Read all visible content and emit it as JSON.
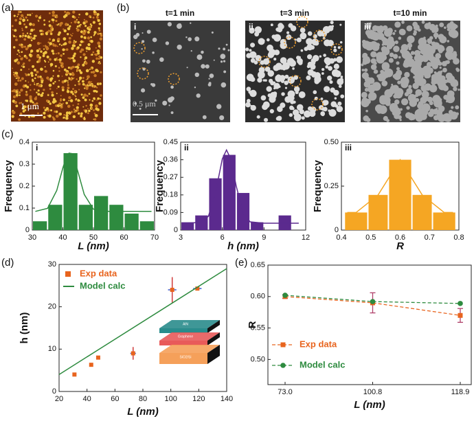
{
  "panels": {
    "a": {
      "label": "(a)",
      "scale_bar": "1 μm"
    },
    "b": {
      "label": "(b)",
      "images": [
        {
          "title": "t=1 min",
          "tag": "i",
          "scale_bar": "0.5 μm"
        },
        {
          "title": "t=3 min",
          "tag": "ii"
        },
        {
          "title": "t=10 min",
          "tag": "iii"
        }
      ]
    },
    "c": {
      "label": "(c)"
    },
    "d": {
      "label": "(d)"
    },
    "e": {
      "label": "(e)"
    }
  },
  "chart_data": [
    {
      "type": "histogram",
      "annotation": "i",
      "xlabel": "L (nm)",
      "ylabel": "Frequency",
      "color": "#2e8b3f",
      "bins": [
        30,
        35,
        40,
        45,
        50,
        55,
        60,
        65,
        70
      ],
      "values": [
        0.04,
        0.115,
        0.35,
        0.115,
        0.155,
        0.115,
        0.075,
        0.04
      ],
      "fit": {
        "x": [
          31,
          35,
          38,
          40,
          41,
          42,
          43,
          44,
          45,
          47,
          50,
          55,
          60,
          69
        ],
        "values": [
          0.085,
          0.099,
          0.18,
          0.283,
          0.326,
          0.35,
          0.348,
          0.31,
          0.262,
          0.162,
          0.095,
          0.085,
          0.085,
          0.085
        ]
      },
      "xlim": [
        30,
        70
      ],
      "ylim": [
        0,
        0.4
      ],
      "xticks": [
        30,
        40,
        50,
        60,
        70
      ],
      "yticks": [
        0,
        0.1,
        0.2,
        0.3,
        0.4
      ]
    },
    {
      "type": "histogram",
      "annotation": "ii",
      "xlabel": "h (nm)",
      "ylabel": "Frequency",
      "color": "#5b2a8e",
      "bins": [
        3,
        4,
        5,
        6,
        7,
        8,
        9,
        10,
        11
      ],
      "values": [
        0.04,
        0.075,
        0.265,
        0.385,
        0.19,
        0.04,
        0,
        0.075
      ],
      "fit": {
        "x": [
          3.2,
          4.5,
          5,
          5.5,
          6,
          6.3,
          6.6,
          7,
          7.5,
          8,
          9,
          11.5
        ],
        "values": [
          0.035,
          0.039,
          0.071,
          0.189,
          0.365,
          0.41,
          0.365,
          0.225,
          0.086,
          0.042,
          0.035,
          0.035
        ]
      },
      "xlim": [
        3,
        12
      ],
      "ylim": [
        0,
        0.45
      ],
      "xticks": [
        3,
        6,
        9,
        12
      ],
      "yticks": [
        0,
        0.09,
        0.18,
        0.27,
        0.36,
        0.45
      ]
    },
    {
      "type": "histogram",
      "annotation": "iii",
      "xlabel": "R",
      "ylabel": "Frequency",
      "color": "#f5a623",
      "bins": [
        0.41,
        0.49,
        0.56,
        0.64,
        0.71,
        0.79
      ],
      "values": [
        0.1,
        0.2,
        0.4,
        0.2,
        0.1
      ],
      "fit": {
        "x": [
          0.42,
          0.45,
          0.525,
          0.6,
          0.675,
          0.75,
          0.78
        ],
        "values": [
          0.1,
          0.1,
          0.2,
          0.4,
          0.2,
          0.1,
          0.1
        ]
      },
      "xlim": [
        0.4,
        0.8
      ],
      "ylim": [
        0,
        0.5
      ],
      "xticks": [
        0.4,
        0.5,
        0.6,
        0.7,
        0.8
      ],
      "yticks": [
        0,
        0.25,
        {
          "value": 0.5,
          "label": "0.50"
        }
      ]
    },
    {
      "type": "scatter",
      "xlabel": "L (nm)",
      "ylabel": "h (nm)",
      "legend": "upper left",
      "xlim": [
        20,
        140
      ],
      "ylim": [
        0,
        30
      ],
      "xticks": [
        20,
        40,
        60,
        80,
        100,
        120,
        140
      ],
      "yticks": [
        0,
        10,
        20,
        30
      ],
      "series": [
        {
          "name": "Exp data",
          "color": "#e8641e",
          "x": [
            31,
            43,
            48,
            73,
            101,
            119
          ],
          "values": [
            4,
            6.3,
            8,
            9,
            24,
            24.3
          ],
          "xerr": [
            0.5,
            1,
            0.5,
            2,
            3,
            3
          ],
          "yerr": [
            0.3,
            0.3,
            0.3,
            1.5,
            3,
            0.3
          ]
        },
        {
          "name": "Model calc",
          "color": "#2e8b3f",
          "type": "line",
          "x": [
            20,
            140
          ],
          "values": [
            4,
            29
          ]
        }
      ],
      "inset_labels": [
        "AlN",
        "Graphene",
        "SiO2/Si"
      ]
    },
    {
      "type": "line",
      "xlabel": "L (nm)",
      "ylabel": "R",
      "legend": "lower left",
      "categories": [
        "73.0",
        "100.8",
        "118.9"
      ],
      "ylim": [
        0.46,
        0.65
      ],
      "yticks": [
        {
          "value": 0.5,
          "label": "0.50"
        },
        0.55,
        {
          "value": 0.6,
          "label": "0.60"
        },
        0.65
      ],
      "series": [
        {
          "name": "Exp data",
          "color": "#e8641e",
          "marker": "square",
          "values": [
            0.6,
            0.59,
            0.57
          ],
          "yerr": [
            0.003,
            0.016,
            0.011
          ]
        },
        {
          "name": "Model calc",
          "color": "#2e8b3f",
          "marker": "circle",
          "values": [
            0.602,
            0.592,
            0.589
          ]
        }
      ]
    }
  ]
}
